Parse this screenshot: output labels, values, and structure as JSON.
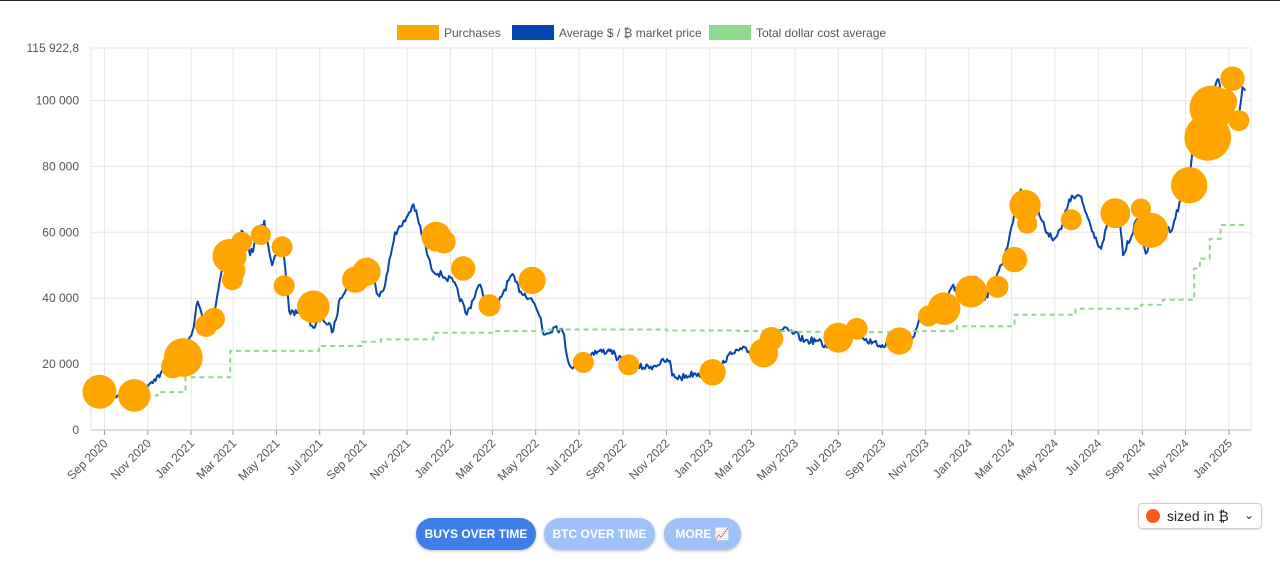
{
  "colors": {
    "purchases": "#FFA500",
    "price": "#0645AD",
    "dca": "#8ED98E",
    "grid": "#e6e6e6",
    "button_active": "#3f7de8",
    "button_inactive": "#9ec2f7"
  },
  "buttons": {
    "buys": "BUYS OVER TIME",
    "btc": "BTC OVER TIME",
    "more": "MORE 📈"
  },
  "size_select": {
    "value": "sized in ₿"
  },
  "chart_data": {
    "type": "line",
    "title": "",
    "xlabel": "",
    "ylabel": "",
    "grid": true,
    "legend_position": "top-center",
    "legend": [
      "Purchases",
      "Average $ / ₿ market price",
      "Total dollar cost average"
    ],
    "x_range": [
      "2020-08-13",
      "2025-02-01"
    ],
    "y_range": [
      0,
      115922.8
    ],
    "y_ticks": [
      0,
      20000,
      40000,
      60000,
      80000,
      100000,
      115922.8
    ],
    "y_tick_labels": [
      "0",
      "20 000",
      "40 000",
      "60 000",
      "80 000",
      "100 000",
      "115 922,8"
    ],
    "x_ticks": [
      "2020-09-01",
      "2020-11-01",
      "2021-01-01",
      "2021-03-01",
      "2021-05-01",
      "2021-07-01",
      "2021-09-01",
      "2021-11-01",
      "2022-01-01",
      "2022-03-01",
      "2022-05-01",
      "2022-07-01",
      "2022-09-01",
      "2022-11-01",
      "2023-01-01",
      "2023-03-01",
      "2023-05-01",
      "2023-07-01",
      "2023-09-01",
      "2023-11-01",
      "2024-01-01",
      "2024-03-01",
      "2024-05-01",
      "2024-07-01",
      "2024-09-01",
      "2024-11-01",
      "2025-01-01"
    ],
    "x_tick_labels": [
      "Sep 2020",
      "Nov 2020",
      "Jan 2021",
      "Mar 2021",
      "May 2021",
      "Jul 2021",
      "Sep 2021",
      "Nov 2021",
      "Jan 2022",
      "Mar 2022",
      "May 2022",
      "Jul 2022",
      "Sep 2022",
      "Nov 2022",
      "Jan 2023",
      "Mar 2023",
      "May 2023",
      "Jul 2023",
      "Sep 2023",
      "Nov 2023",
      "Jan 2024",
      "Mar 2024",
      "May 2024",
      "Jul 2024",
      "Sep 2024",
      "Nov 2024",
      "Jan 2025"
    ],
    "series": [
      {
        "name": "Average $ / ₿ market price",
        "type": "line",
        "points": [
          [
            "2020-09-08",
            10200
          ],
          [
            "2020-09-25",
            10500
          ],
          [
            "2020-10-10",
            11200
          ],
          [
            "2020-10-25",
            12800
          ],
          [
            "2020-11-10",
            15400
          ],
          [
            "2020-11-25",
            18000
          ],
          [
            "2020-12-10",
            18500
          ],
          [
            "2020-12-20",
            22500
          ],
          [
            "2021-01-03",
            30000
          ],
          [
            "2021-01-10",
            39000
          ],
          [
            "2021-01-20",
            32000
          ],
          [
            "2021-02-01",
            34000
          ],
          [
            "2021-02-10",
            45000
          ],
          [
            "2021-02-20",
            56000
          ],
          [
            "2021-03-01",
            47000
          ],
          [
            "2021-03-13",
            60500
          ],
          [
            "2021-03-25",
            53000
          ],
          [
            "2021-04-14",
            63500
          ],
          [
            "2021-04-25",
            50000
          ],
          [
            "2021-05-10",
            57000
          ],
          [
            "2021-05-19",
            36000
          ],
          [
            "2021-05-30",
            35500
          ],
          [
            "2021-06-10",
            36000
          ],
          [
            "2021-06-22",
            31000
          ],
          [
            "2021-07-05",
            34000
          ],
          [
            "2021-07-20",
            30000
          ],
          [
            "2021-07-30",
            40000
          ],
          [
            "2021-08-15",
            47000
          ],
          [
            "2021-08-25",
            48500
          ],
          [
            "2021-09-07",
            52000
          ],
          [
            "2021-09-21",
            41000
          ],
          [
            "2021-10-01",
            44000
          ],
          [
            "2021-10-15",
            60000
          ],
          [
            "2021-10-25",
            62000
          ],
          [
            "2021-11-10",
            68500
          ],
          [
            "2021-11-25",
            57000
          ],
          [
            "2021-12-05",
            49000
          ],
          [
            "2021-12-20",
            47000
          ],
          [
            "2022-01-05",
            45000
          ],
          [
            "2022-01-24",
            35000
          ],
          [
            "2022-02-10",
            44000
          ],
          [
            "2022-02-24",
            38000
          ],
          [
            "2022-03-10",
            39000
          ],
          [
            "2022-03-28",
            47000
          ],
          [
            "2022-04-10",
            42000
          ],
          [
            "2022-04-25",
            40000
          ],
          [
            "2022-05-08",
            34000
          ],
          [
            "2022-05-12",
            29000
          ],
          [
            "2022-05-30",
            31500
          ],
          [
            "2022-06-10",
            29000
          ],
          [
            "2022-06-14",
            22500
          ],
          [
            "2022-06-18",
            19500
          ],
          [
            "2022-07-05",
            20000
          ],
          [
            "2022-07-20",
            23500
          ],
          [
            "2022-08-10",
            24000
          ],
          [
            "2022-08-15",
            24400
          ],
          [
            "2022-08-25",
            21500
          ],
          [
            "2022-09-10",
            21000
          ],
          [
            "2022-09-20",
            19000
          ],
          [
            "2022-10-10",
            19200
          ],
          [
            "2022-10-29",
            20800
          ],
          [
            "2022-11-06",
            21000
          ],
          [
            "2022-11-09",
            16500
          ],
          [
            "2022-11-21",
            15800
          ],
          [
            "2022-12-10",
            17200
          ],
          [
            "2022-12-30",
            16500
          ],
          [
            "2023-01-10",
            17200
          ],
          [
            "2023-01-20",
            21000
          ],
          [
            "2023-02-01",
            23000
          ],
          [
            "2023-02-15",
            24500
          ],
          [
            "2023-03-01",
            23500
          ],
          [
            "2023-03-10",
            20200
          ],
          [
            "2023-03-17",
            26500
          ],
          [
            "2023-03-29",
            28500
          ],
          [
            "2023-04-14",
            30500
          ],
          [
            "2023-04-30",
            29300
          ],
          [
            "2023-05-15",
            27000
          ],
          [
            "2023-06-01",
            27200
          ],
          [
            "2023-06-15",
            25000
          ],
          [
            "2023-06-23",
            30500
          ],
          [
            "2023-07-13",
            31500
          ],
          [
            "2023-07-30",
            29300
          ],
          [
            "2023-08-17",
            26200
          ],
          [
            "2023-09-01",
            25800
          ],
          [
            "2023-09-15",
            26500
          ],
          [
            "2023-10-01",
            27000
          ],
          [
            "2023-10-16",
            28500
          ],
          [
            "2023-10-24",
            34500
          ],
          [
            "2023-11-10",
            37000
          ],
          [
            "2023-11-25",
            37500
          ],
          [
            "2023-12-08",
            43500
          ],
          [
            "2023-12-20",
            42000
          ],
          [
            "2024-01-10",
            46500
          ],
          [
            "2024-01-23",
            39500
          ],
          [
            "2024-02-10",
            47500
          ],
          [
            "2024-02-20",
            52000
          ],
          [
            "2024-02-28",
            60000
          ],
          [
            "2024-03-05",
            66000
          ],
          [
            "2024-03-14",
            73000
          ],
          [
            "2024-03-20",
            62000
          ],
          [
            "2024-04-01",
            70000
          ],
          [
            "2024-04-17",
            61000
          ],
          [
            "2024-04-30",
            58000
          ],
          [
            "2024-05-10",
            61000
          ],
          [
            "2024-05-21",
            70000
          ],
          [
            "2024-06-05",
            71000
          ],
          [
            "2024-06-24",
            60000
          ],
          [
            "2024-07-05",
            55000
          ],
          [
            "2024-07-20",
            67000
          ],
          [
            "2024-07-29",
            69000
          ],
          [
            "2024-08-05",
            53000
          ],
          [
            "2024-08-25",
            64000
          ],
          [
            "2024-09-06",
            53500
          ],
          [
            "2024-09-20",
            63000
          ],
          [
            "2024-09-30",
            64000
          ],
          [
            "2024-10-10",
            60000
          ],
          [
            "2024-10-29",
            72000
          ],
          [
            "2024-11-06",
            75000
          ],
          [
            "2024-11-13",
            90000
          ],
          [
            "2024-11-22",
            98000
          ],
          [
            "2024-12-05",
            100500
          ],
          [
            "2024-12-17",
            106500
          ],
          [
            "2024-12-27",
            94000
          ],
          [
            "2025-01-07",
            96500
          ],
          [
            "2025-01-13",
            91000
          ],
          [
            "2025-01-20",
            104000
          ],
          [
            "2025-01-24",
            103000
          ]
        ]
      },
      {
        "name": "Total dollar cost average",
        "type": "step",
        "points": [
          [
            "2020-09-08",
            10500
          ],
          [
            "2020-11-15",
            11500
          ],
          [
            "2020-12-24",
            16000
          ],
          [
            "2021-02-25",
            24000
          ],
          [
            "2021-06-30",
            25500
          ],
          [
            "2021-08-30",
            26800
          ],
          [
            "2021-09-25",
            27500
          ],
          [
            "2021-12-08",
            29500
          ],
          [
            "2022-03-01",
            30000
          ],
          [
            "2022-05-20",
            30500
          ],
          [
            "2022-11-01",
            30200
          ],
          [
            "2023-02-10",
            30000
          ],
          [
            "2023-05-01",
            29800
          ],
          [
            "2023-08-01",
            29700
          ],
          [
            "2023-10-10",
            30000
          ],
          [
            "2023-12-15",
            31500
          ],
          [
            "2024-03-05",
            35000
          ],
          [
            "2024-05-30",
            36800
          ],
          [
            "2024-08-30",
            38000
          ],
          [
            "2024-09-30",
            39500
          ],
          [
            "2024-11-13",
            49000
          ],
          [
            "2024-11-21",
            52000
          ],
          [
            "2024-12-05",
            58000
          ],
          [
            "2024-12-20",
            62200
          ],
          [
            "2025-01-24",
            62500
          ]
        ]
      },
      {
        "name": "Purchases",
        "type": "bubble",
        "points": [
          {
            "x": "2020-08-25",
            "y": 11600,
            "btc": 1.0
          },
          {
            "x": "2020-10-13",
            "y": 10500,
            "btc": 0.9
          },
          {
            "x": "2020-12-06",
            "y": 19200,
            "btc": 0.35
          },
          {
            "x": "2020-12-21",
            "y": 22000,
            "btc": 1.4
          },
          {
            "x": "2021-01-22",
            "y": 31600,
            "btc": 0.3
          },
          {
            "x": "2021-02-02",
            "y": 33700,
            "btc": 0.3
          },
          {
            "x": "2021-02-24",
            "y": 52800,
            "btc": 1.0
          },
          {
            "x": "2021-02-28",
            "y": 45600,
            "btc": 0.25
          },
          {
            "x": "2021-03-03",
            "y": 48400,
            "btc": 0.28
          },
          {
            "x": "2021-03-13",
            "y": 57000,
            "btc": 0.25
          },
          {
            "x": "2021-04-09",
            "y": 59200,
            "btc": 0.22
          },
          {
            "x": "2021-05-09",
            "y": 55600,
            "btc": 0.25
          },
          {
            "x": "2021-05-12",
            "y": 43800,
            "btc": 0.25
          },
          {
            "x": "2021-06-22",
            "y": 37400,
            "btc": 0.9
          },
          {
            "x": "2021-08-20",
            "y": 45600,
            "btc": 0.5
          },
          {
            "x": "2021-09-05",
            "y": 48000,
            "btc": 0.6
          },
          {
            "x": "2021-12-12",
            "y": 58700,
            "btc": 0.7
          },
          {
            "x": "2021-12-23",
            "y": 57100,
            "btc": 0.35
          },
          {
            "x": "2022-01-19",
            "y": 49000,
            "btc": 0.4
          },
          {
            "x": "2022-02-25",
            "y": 37800,
            "btc": 0.3
          },
          {
            "x": "2022-04-26",
            "y": 45400,
            "btc": 0.55
          },
          {
            "x": "2022-07-07",
            "y": 20500,
            "btc": 0.25
          },
          {
            "x": "2022-09-09",
            "y": 19800,
            "btc": 0.25
          },
          {
            "x": "2023-01-05",
            "y": 17500,
            "btc": 0.5
          },
          {
            "x": "2023-03-18",
            "y": 23400,
            "btc": 0.65
          },
          {
            "x": "2023-03-29",
            "y": 27700,
            "btc": 0.35
          },
          {
            "x": "2023-07-01",
            "y": 28000,
            "btc": 0.7
          },
          {
            "x": "2023-07-27",
            "y": 30700,
            "btc": 0.28
          },
          {
            "x": "2023-09-25",
            "y": 27000,
            "btc": 0.55
          },
          {
            "x": "2023-11-05",
            "y": 34600,
            "btc": 0.25
          },
          {
            "x": "2023-11-27",
            "y": 36800,
            "btc": 0.9
          },
          {
            "x": "2024-01-04",
            "y": 42000,
            "btc": 0.85
          },
          {
            "x": "2024-02-10",
            "y": 43500,
            "btc": 0.3
          },
          {
            "x": "2024-03-05",
            "y": 51700,
            "btc": 0.45
          },
          {
            "x": "2024-03-20",
            "y": 68200,
            "btc": 0.8
          },
          {
            "x": "2024-03-23",
            "y": 62600,
            "btc": 0.22
          },
          {
            "x": "2024-05-24",
            "y": 63800,
            "btc": 0.25
          },
          {
            "x": "2024-07-25",
            "y": 65800,
            "btc": 0.7
          },
          {
            "x": "2024-08-30",
            "y": 67200,
            "btc": 0.22
          },
          {
            "x": "2024-09-13",
            "y": 60600,
            "btc": 1.1
          },
          {
            "x": "2024-11-06",
            "y": 74300,
            "btc": 1.2
          },
          {
            "x": "2024-12-02",
            "y": 88800,
            "btc": 2.2
          },
          {
            "x": "2024-12-08",
            "y": 97700,
            "btc": 2.0
          },
          {
            "x": "2024-12-25",
            "y": 99500,
            "btc": 0.5
          },
          {
            "x": "2025-01-06",
            "y": 106600,
            "btc": 0.4
          },
          {
            "x": "2025-01-15",
            "y": 93900,
            "btc": 0.25
          }
        ]
      }
    ]
  }
}
